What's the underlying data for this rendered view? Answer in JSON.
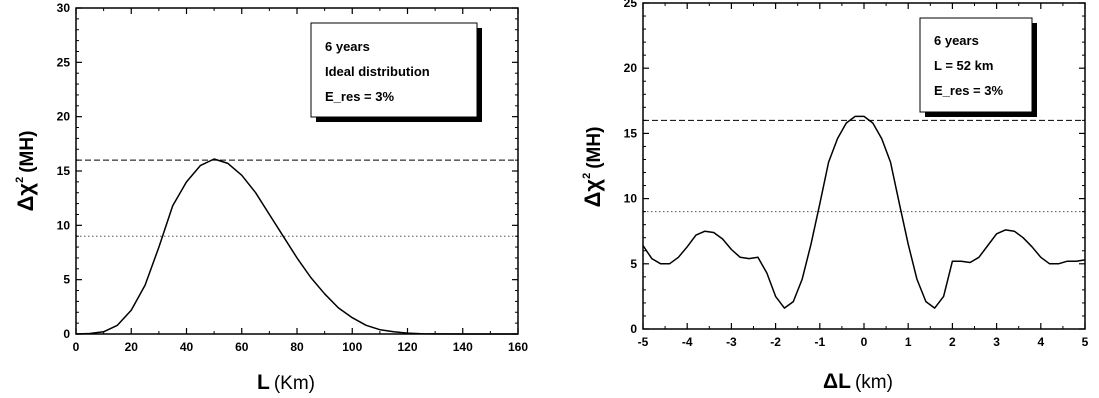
{
  "chart_data": [
    {
      "type": "line",
      "xlabel": "L (Km)",
      "xlabel_main": "L",
      "xlabel_unit": "(Km)",
      "ylabel_main": "Δχ",
      "ylabel_sup": "2",
      "ylabel_unit": "(MH)",
      "xlim": [
        0,
        160
      ],
      "ylim": [
        0,
        30
      ],
      "xticks": [
        "0",
        "20",
        "40",
        "60",
        "80",
        "100",
        "120",
        "140",
        "160"
      ],
      "yticks": [
        "0",
        "5",
        "10",
        "15",
        "20",
        "25",
        "30"
      ],
      "legend": [
        "6 years",
        "Ideal distribution",
        "E_res = 3%"
      ],
      "legend_position": "top-right",
      "hlines": [
        {
          "y": 16,
          "style": "dashed"
        },
        {
          "y": 9,
          "style": "dotted"
        }
      ],
      "series": [
        {
          "x": [
            0,
            5,
            10,
            15,
            20,
            25,
            30,
            35,
            40,
            45,
            50,
            55,
            60,
            65,
            70,
            75,
            80,
            85,
            90,
            95,
            100,
            105,
            110,
            115,
            120,
            125,
            130,
            140,
            150,
            160
          ],
          "y": [
            0,
            0.05,
            0.2,
            0.8,
            2.2,
            4.5,
            8.0,
            11.8,
            14.0,
            15.5,
            16.1,
            15.7,
            14.6,
            13.0,
            11.0,
            9.0,
            7.0,
            5.2,
            3.7,
            2.4,
            1.5,
            0.8,
            0.4,
            0.2,
            0.08,
            0.03,
            0.01,
            0,
            0,
            0
          ]
        }
      ]
    },
    {
      "type": "line",
      "xlabel": "ΔL (km)",
      "xlabel_main": "ΔL",
      "xlabel_unit": "(km)",
      "ylabel_main": "Δχ",
      "ylabel_sup": "2",
      "ylabel_unit": "(MH)",
      "xlim": [
        -5,
        5
      ],
      "ylim": [
        0,
        25
      ],
      "xticks": [
        "-5",
        "-4",
        "-3",
        "-2",
        "-1",
        "0",
        "1",
        "2",
        "3",
        "4",
        "5"
      ],
      "yticks": [
        "0",
        "5",
        "10",
        "15",
        "20",
        "25"
      ],
      "legend": [
        "6 years",
        "L = 52 km",
        "E_res = 3%"
      ],
      "legend_position": "top-right",
      "hlines": [
        {
          "y": 16,
          "style": "dashed"
        },
        {
          "y": 9,
          "style": "dotted"
        }
      ],
      "series": [
        {
          "x": [
            -5,
            -4.8,
            -4.6,
            -4.4,
            -4.2,
            -4.0,
            -3.8,
            -3.6,
            -3.4,
            -3.2,
            -3.0,
            -2.8,
            -2.6,
            -2.4,
            -2.2,
            -2.0,
            -1.8,
            -1.6,
            -1.4,
            -1.2,
            -1.0,
            -0.8,
            -0.6,
            -0.4,
            -0.2,
            0,
            0.2,
            0.4,
            0.6,
            0.8,
            1.0,
            1.2,
            1.4,
            1.6,
            1.8,
            2.0,
            2.2,
            2.4,
            2.6,
            2.8,
            3.0,
            3.2,
            3.4,
            3.6,
            3.8,
            4.0,
            4.2,
            4.4,
            4.6,
            4.8,
            5.0
          ],
          "y": [
            6.4,
            5.4,
            5.0,
            5.0,
            5.5,
            6.3,
            7.2,
            7.5,
            7.4,
            6.9,
            6.1,
            5.5,
            5.4,
            5.5,
            4.3,
            2.5,
            1.6,
            2.1,
            3.8,
            6.5,
            9.6,
            12.8,
            14.6,
            15.8,
            16.3,
            16.3,
            15.8,
            14.6,
            12.8,
            9.6,
            6.5,
            3.8,
            2.1,
            1.6,
            2.5,
            5.2,
            5.2,
            5.1,
            5.5,
            6.4,
            7.3,
            7.6,
            7.5,
            7.0,
            6.3,
            5.5,
            5.0,
            5.0,
            5.2,
            5.2,
            5.3
          ]
        }
      ]
    }
  ]
}
